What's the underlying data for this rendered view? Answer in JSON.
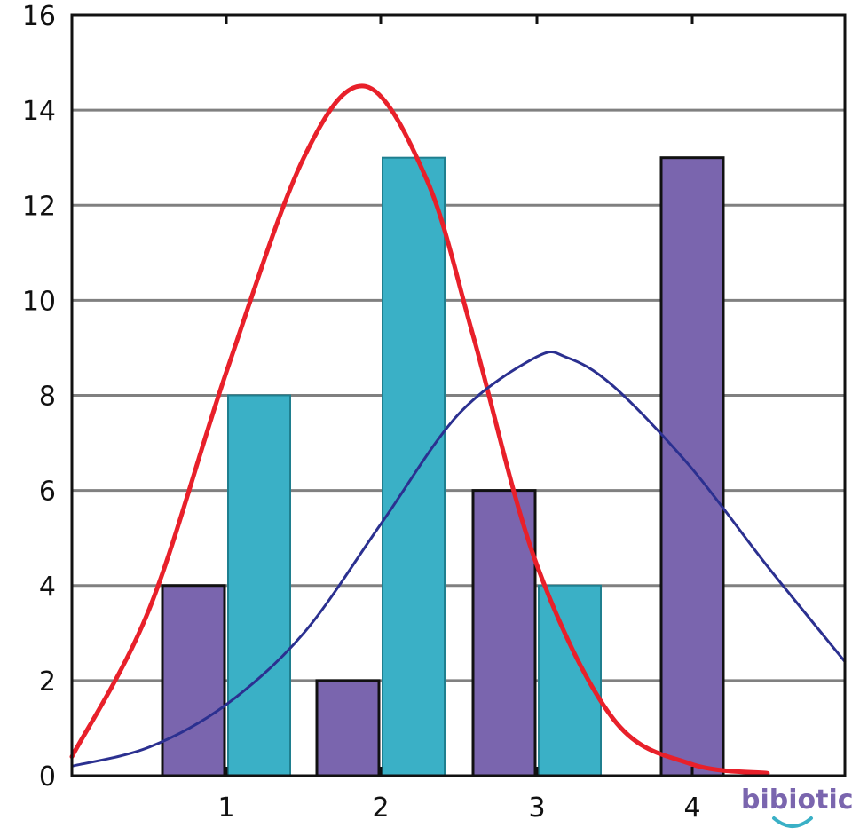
{
  "chart_data": {
    "type": "bar",
    "categories": [
      "1",
      "2",
      "3",
      "4"
    ],
    "series": [
      {
        "values": [
          4,
          2,
          6,
          13
        ],
        "color": "#7a65ae"
      },
      {
        "values": [
          8,
          13,
          4,
          null
        ],
        "color": "#3ab0c6"
      }
    ],
    "curves": [
      {
        "type": "line",
        "color": "#e8202a",
        "x": [
          0.0,
          0.5,
          1.0,
          1.5,
          1.9,
          2.3,
          2.6,
          3.0,
          3.5,
          4.0,
          4.5
        ],
        "y": [
          0.4,
          3.5,
          8.5,
          13.0,
          14.5,
          12.5,
          9.2,
          4.5,
          1.2,
          0.25,
          0.05
        ]
      },
      {
        "type": "line",
        "color": "#2b3090",
        "x": [
          0.0,
          0.5,
          1.0,
          1.5,
          2.0,
          2.5,
          3.0,
          3.2,
          3.5,
          4.0,
          4.5,
          5.0
        ],
        "y": [
          0.2,
          0.6,
          1.5,
          3.0,
          5.3,
          7.6,
          8.8,
          8.8,
          8.2,
          6.5,
          4.4,
          2.4
        ]
      }
    ],
    "xlim": [
      0,
      5
    ],
    "ylim": [
      0,
      16
    ],
    "yticks": [
      0,
      2,
      4,
      6,
      8,
      10,
      12,
      14,
      16
    ],
    "xticks": [
      1,
      2,
      3,
      4
    ],
    "grid": "horizontal",
    "title": "",
    "xlabel": "",
    "ylabel": ""
  },
  "logo": {
    "text": "bibiotic",
    "color": "#7a65ae",
    "accent": "#3ab0c6"
  }
}
